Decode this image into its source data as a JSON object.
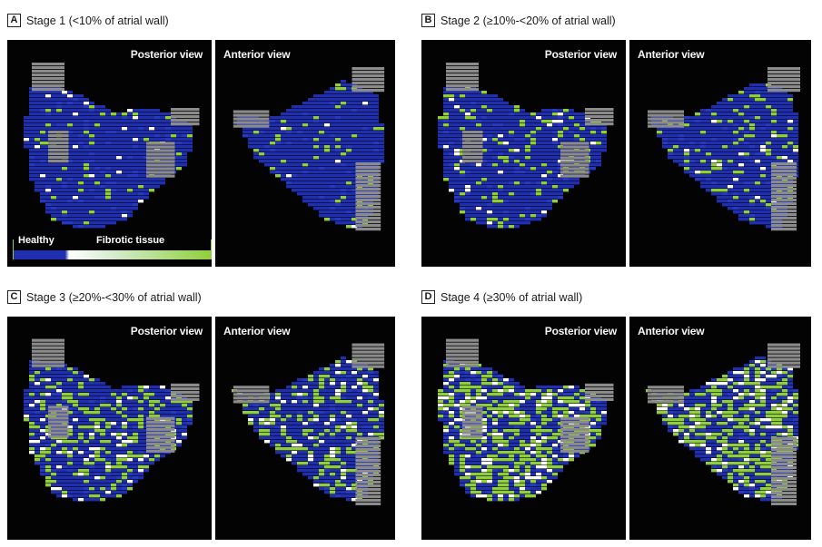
{
  "colors": {
    "background": "#030303",
    "healthy": "#1f2fb0",
    "fibrotic": "#8fcf3a",
    "border_region": "#8b8b8b",
    "white_spot": "#ffffff"
  },
  "stages": [
    {
      "letter": "A",
      "label": "Stage 1 (<10% of atrial wall)",
      "posterior_title": "Posterior view",
      "anterior_title": "Anterior view",
      "fibrosis_density": 0.08
    },
    {
      "letter": "B",
      "label": "Stage 2 (≥10%-<20% of atrial wall)",
      "posterior_title": "Posterior view",
      "anterior_title": "Anterior view",
      "fibrosis_density": 0.18
    },
    {
      "letter": "C",
      "label": "Stage 3 (≥20%-<30% of atrial wall)",
      "posterior_title": "Posterior view",
      "anterior_title": "Anterior view",
      "fibrosis_density": 0.3
    },
    {
      "letter": "D",
      "label": "Stage 4 (≥30% of atrial wall)",
      "posterior_title": "Posterior view",
      "anterior_title": "Anterior view",
      "fibrosis_density": 0.52
    }
  ],
  "legend": {
    "healthy_label": "Healthy",
    "fibrotic_label": "Fibrotic tissue"
  }
}
